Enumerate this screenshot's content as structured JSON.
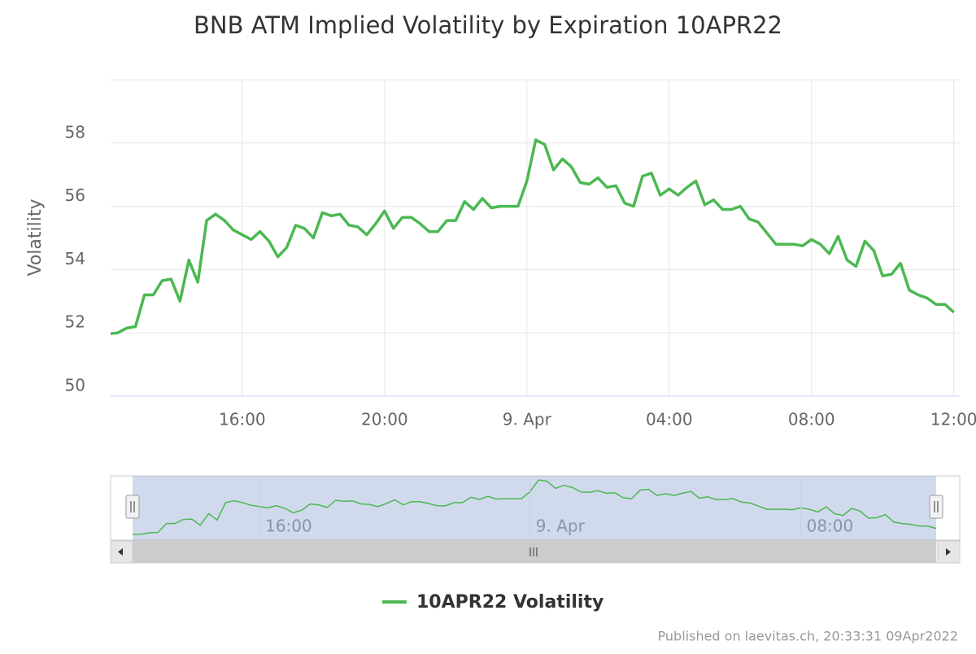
{
  "chart_data": {
    "type": "line",
    "title": "BNB ATM Implied Volatility by Expiration 10APR22",
    "y_label": "Volatility",
    "footer": "Published on laevitas.ch, 20:33:31 09Apr2022",
    "x": [
      "2022-04-08T12:15",
      "2022-04-08T12:30",
      "2022-04-08T12:45",
      "2022-04-08T13:00",
      "2022-04-08T13:15",
      "2022-04-08T13:30",
      "2022-04-08T13:45",
      "2022-04-08T14:00",
      "2022-04-08T14:15",
      "2022-04-08T14:30",
      "2022-04-08T14:45",
      "2022-04-08T15:00",
      "2022-04-08T15:15",
      "2022-04-08T15:30",
      "2022-04-08T15:45",
      "2022-04-08T16:00",
      "2022-04-08T16:15",
      "2022-04-08T16:30",
      "2022-04-08T16:45",
      "2022-04-08T17:00",
      "2022-04-08T17:15",
      "2022-04-08T17:30",
      "2022-04-08T17:45",
      "2022-04-08T18:00",
      "2022-04-08T18:15",
      "2022-04-08T18:30",
      "2022-04-08T18:45",
      "2022-04-08T19:00",
      "2022-04-08T19:15",
      "2022-04-08T19:30",
      "2022-04-08T19:45",
      "2022-04-08T20:00",
      "2022-04-08T20:15",
      "2022-04-08T20:30",
      "2022-04-08T20:45",
      "2022-04-08T21:00",
      "2022-04-08T21:15",
      "2022-04-08T21:30",
      "2022-04-08T21:45",
      "2022-04-08T22:00",
      "2022-04-08T22:15",
      "2022-04-08T22:30",
      "2022-04-08T22:45",
      "2022-04-08T23:00",
      "2022-04-08T23:15",
      "2022-04-08T23:30",
      "2022-04-08T23:45",
      "2022-04-09T00:00",
      "2022-04-09T00:15",
      "2022-04-09T00:30",
      "2022-04-09T00:45",
      "2022-04-09T01:00",
      "2022-04-09T01:15",
      "2022-04-09T01:30",
      "2022-04-09T01:45",
      "2022-04-09T02:00",
      "2022-04-09T02:15",
      "2022-04-09T02:30",
      "2022-04-09T02:45",
      "2022-04-09T03:00",
      "2022-04-09T03:15",
      "2022-04-09T03:30",
      "2022-04-09T03:45",
      "2022-04-09T04:00",
      "2022-04-09T04:15",
      "2022-04-09T04:30",
      "2022-04-09T04:45",
      "2022-04-09T05:00",
      "2022-04-09T05:15",
      "2022-04-09T05:30",
      "2022-04-09T05:45",
      "2022-04-09T06:00",
      "2022-04-09T06:15",
      "2022-04-09T06:30",
      "2022-04-09T06:45",
      "2022-04-09T07:00",
      "2022-04-09T07:15",
      "2022-04-09T07:30",
      "2022-04-09T07:45",
      "2022-04-09T08:00",
      "2022-04-09T08:15",
      "2022-04-09T08:30",
      "2022-04-09T08:45",
      "2022-04-09T09:00",
      "2022-04-09T09:15",
      "2022-04-09T09:30",
      "2022-04-09T09:45",
      "2022-04-09T10:00",
      "2022-04-09T10:15",
      "2022-04-09T10:30",
      "2022-04-09T10:45",
      "2022-04-09T11:00",
      "2022-04-09T11:15",
      "2022-04-09T11:30",
      "2022-04-09T11:45",
      "2022-04-09T12:00"
    ],
    "series": [
      {
        "name": "10APR22 Volatility",
        "color": "#4cb852",
        "values": [
          51.97,
          52.0,
          52.15,
          52.2,
          53.2,
          53.2,
          53.65,
          53.7,
          53.0,
          54.3,
          53.6,
          55.55,
          55.75,
          55.55,
          55.25,
          55.1,
          54.95,
          55.2,
          54.9,
          54.4,
          54.7,
          55.4,
          55.3,
          55.0,
          55.8,
          55.7,
          55.75,
          55.4,
          55.35,
          55.1,
          55.45,
          55.85,
          55.3,
          55.65,
          55.65,
          55.45,
          55.2,
          55.2,
          55.55,
          55.55,
          56.15,
          55.9,
          56.25,
          55.95,
          56.0,
          56.0,
          56.0,
          56.8,
          58.1,
          57.95,
          57.15,
          57.5,
          57.25,
          56.75,
          56.7,
          56.9,
          56.6,
          56.65,
          56.1,
          56.0,
          56.95,
          57.05,
          56.35,
          56.55,
          56.35,
          56.6,
          56.8,
          56.05,
          56.2,
          55.9,
          55.9,
          56.0,
          55.6,
          55.5,
          55.15,
          54.8,
          54.8,
          54.8,
          54.75,
          54.95,
          54.8,
          54.5,
          55.05,
          54.3,
          54.1,
          54.9,
          54.6,
          53.8,
          53.85,
          54.2,
          53.35,
          53.2,
          53.1,
          52.9,
          52.9,
          52.65
        ]
      }
    ],
    "xlim": [
      "2022-04-08T12:18",
      "2022-04-09T12:10"
    ],
    "xticks": [
      {
        "value": "2022-04-08T16:00",
        "label": "16:00"
      },
      {
        "value": "2022-04-08T20:00",
        "label": "20:00"
      },
      {
        "value": "2022-04-09T00:00",
        "label": "9. Apr"
      },
      {
        "value": "2022-04-09T04:00",
        "label": "04:00"
      },
      {
        "value": "2022-04-09T08:00",
        "label": "08:00"
      },
      {
        "value": "2022-04-09T12:00",
        "label": "12:00"
      }
    ],
    "ylim": [
      50,
      60
    ],
    "yticks": [
      50,
      52,
      54,
      56,
      58
    ],
    "grid": true,
    "legend": "bottom",
    "navigator": true
  }
}
